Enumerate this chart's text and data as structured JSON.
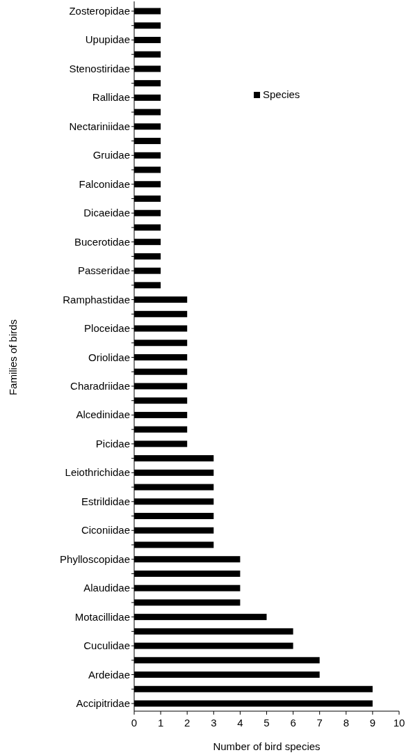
{
  "chart_data": {
    "type": "bar",
    "orientation": "horizontal",
    "xlabel": "Number of bird species",
    "ylabel": "Families of birds",
    "categories": [
      "Zosteropidae",
      null,
      "Upupidae",
      null,
      "Stenostiridae",
      null,
      "Rallidae",
      null,
      "Nectariniidae",
      null,
      "Gruidae",
      null,
      "Falconidae",
      null,
      "Dicaeidae",
      null,
      "Bucerotidae",
      null,
      "Passeridae",
      null,
      "Ramphastidae",
      null,
      "Ploceidae",
      null,
      "Oriolidae",
      null,
      "Charadriidae",
      null,
      "Alcedinidae",
      null,
      "Picidae",
      null,
      "Leiothrichidae",
      null,
      "Estrildidae",
      null,
      "Ciconiidae",
      null,
      "Phylloscopidae",
      null,
      "Alaudidae",
      null,
      "Motacillidae",
      null,
      "Cuculidae",
      null,
      "Ardeidae",
      null,
      "Accipitridae"
    ],
    "series": [
      {
        "name": "Species",
        "color": "#000000",
        "values": [
          1,
          1,
          1,
          1,
          1,
          1,
          1,
          1,
          1,
          1,
          1,
          1,
          1,
          1,
          1,
          1,
          1,
          1,
          1,
          1,
          2,
          2,
          2,
          2,
          2,
          2,
          2,
          2,
          2,
          2,
          2,
          3,
          3,
          3,
          3,
          3,
          3,
          3,
          4,
          4,
          4,
          4,
          5,
          6,
          6,
          7,
          7,
          9,
          9
        ]
      }
    ],
    "xlim": [
      0,
      10
    ],
    "xticks": [
      0,
      1,
      2,
      3,
      4,
      5,
      6,
      7,
      8,
      9,
      10
    ],
    "legend": "top right",
    "grid": false
  }
}
